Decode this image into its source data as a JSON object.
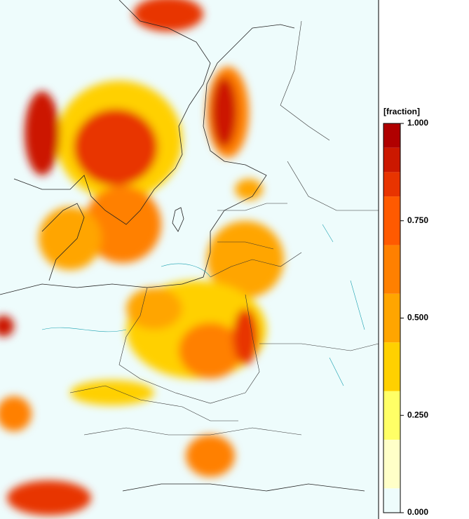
{
  "colorbar": {
    "label": "[fraction]",
    "levels": [
      0,
      0.0625,
      0.1875,
      0.3125,
      0.4375,
      0.5625,
      0.6875,
      0.8125,
      0.875,
      0.9375,
      1.0
    ],
    "colors": [
      "#eefcfc",
      "#ffffc8",
      "#ffff66",
      "#ffd000",
      "#ffa500",
      "#ff8000",
      "#ff5a00",
      "#e83400",
      "#cc1800",
      "#b00000"
    ],
    "lim": [
      0,
      1
    ],
    "ticks": [
      {
        "value": 0,
        "label": "0.000"
      },
      {
        "value": 0.25,
        "label": "0.250"
      },
      {
        "value": 0.5,
        "label": "0.500"
      },
      {
        "value": 0.75,
        "label": "0.750"
      },
      {
        "value": 1,
        "label": "1.000"
      }
    ]
  }
}
